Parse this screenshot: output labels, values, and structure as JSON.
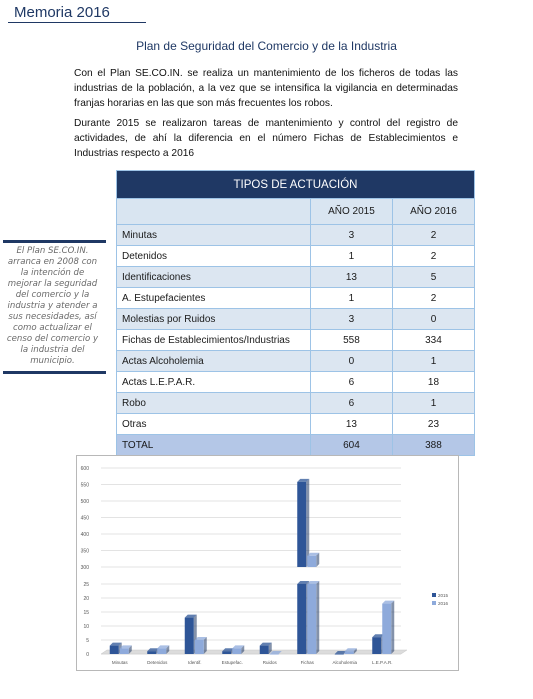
{
  "header": {
    "title": "Memoria 2016"
  },
  "section_title": "Plan de Seguridad del Comercio y de la Industria",
  "paragraphs": [
    "Con el Plan SE.CO.IN. se realiza un  mantenimiento de los ficheros de todas las industrias de la población, a la vez que se intensifica la vigilancia en determinadas franjas horarias en las que son más frecuentes los robos.",
    "Durante 2015 se realizaron tareas de mantenimiento y control del registro de actividades, de ahí la diferencia en el número Fichas de Establecimientos e Industrias respecto a 2016"
  ],
  "sidebar": {
    "text": "El Plan SE.CO.IN. arranca en 2008 con la intención de mejorar la seguridad del comercio y la industria y atender a sus necesidades, así como actualizar el censo del comercio y la industria del municipio."
  },
  "table": {
    "title": "TIPOS DE ACTUACIÓN",
    "columns": [
      "AÑO 2015",
      "AÑO 2016"
    ],
    "rows": [
      {
        "label": "Minutas",
        "v2015": "3",
        "v2016": "2"
      },
      {
        "label": "Detenidos",
        "v2015": "1",
        "v2016": "2"
      },
      {
        "label": "Identificaciones",
        "v2015": "13",
        "v2016": "5"
      },
      {
        "label": "A. Estupefacientes",
        "v2015": "1",
        "v2016": "2"
      },
      {
        "label": "Molestias por Ruidos",
        "v2015": "3",
        "v2016": "0"
      },
      {
        "label": "Fichas de Establecimientos/Industrias",
        "v2015": "558",
        "v2016": "334"
      },
      {
        "label": "Actas Alcoholemia",
        "v2015": "0",
        "v2016": "1"
      },
      {
        "label": "Actas L.E.P.A.R.",
        "v2015": "6",
        "v2016": "18"
      },
      {
        "label": "Robo",
        "v2015": "6",
        "v2016": "1"
      },
      {
        "label": "Otras",
        "v2015": "13",
        "v2016": "23"
      }
    ],
    "total": {
      "label": "TOTAL",
      "v2015": "604",
      "v2016": "388"
    }
  },
  "chart_data": {
    "type": "bar",
    "categories": [
      "Minutas",
      "Detenidos",
      "Identif.",
      "Estupefac.",
      "Ruidos",
      "Fichas",
      "Alcoholemia",
      "L.E.P.A.R."
    ],
    "series": [
      {
        "name": "2015",
        "values": [
          3,
          1,
          13,
          1,
          3,
          558,
          0,
          6
        ],
        "color": "#2e5597"
      },
      {
        "name": "2016",
        "values": [
          2,
          2,
          5,
          2,
          0,
          334,
          1,
          18
        ],
        "color": "#8eaadb"
      }
    ],
    "lower_axis": {
      "ylim": [
        0,
        25
      ],
      "ticks": [
        "0",
        "5",
        "10",
        "15",
        "20",
        "25"
      ]
    },
    "upper_axis": {
      "ylim": [
        300,
        600
      ],
      "ticks": [
        "300",
        "350",
        "400",
        "450",
        "500",
        "550",
        "600"
      ]
    },
    "legend_position": "right",
    "grid": true
  }
}
